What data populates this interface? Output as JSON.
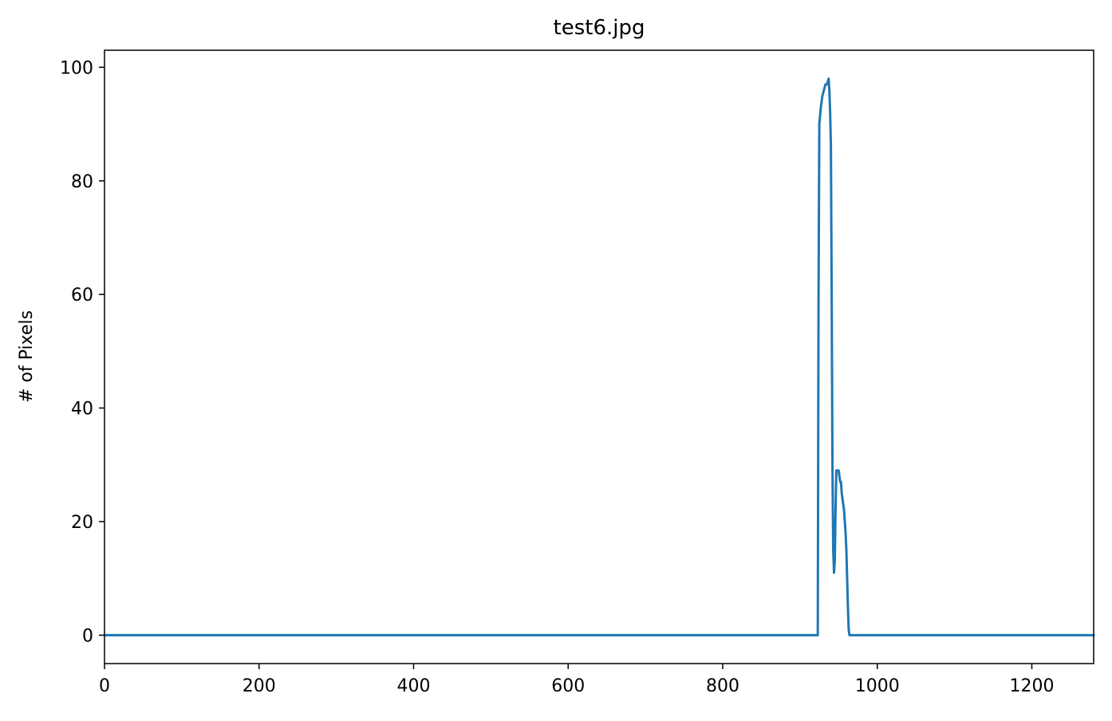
{
  "chart_data": {
    "type": "line",
    "title": "test6.jpg",
    "xlabel": "",
    "ylabel": "# of Pixels",
    "xlim": [
      0,
      1280
    ],
    "ylim": [
      -5,
      103
    ],
    "x_ticks": [
      0,
      200,
      400,
      600,
      800,
      1000,
      1200
    ],
    "y_ticks": [
      0,
      20,
      40,
      60,
      80,
      100
    ],
    "grid": false,
    "line_color": "#1f77b4",
    "series": [
      {
        "points": [
          [
            0,
            0
          ],
          [
            920,
            0
          ],
          [
            923,
            0
          ],
          [
            924,
            60
          ],
          [
            925,
            90
          ],
          [
            927,
            93
          ],
          [
            929,
            95
          ],
          [
            931,
            96
          ],
          [
            933,
            97
          ],
          [
            935,
            97
          ],
          [
            937,
            98
          ],
          [
            938,
            96
          ],
          [
            939,
            92
          ],
          [
            940,
            86
          ],
          [
            941,
            60
          ],
          [
            942,
            30
          ],
          [
            943,
            15
          ],
          [
            944,
            11
          ],
          [
            945,
            13
          ],
          [
            946,
            22
          ],
          [
            947,
            29
          ],
          [
            948,
            29
          ],
          [
            949,
            29
          ],
          [
            950,
            29
          ],
          [
            951,
            28
          ],
          [
            952,
            27
          ],
          [
            953,
            27
          ],
          [
            954,
            25
          ],
          [
            955,
            24
          ],
          [
            956,
            23
          ],
          [
            957,
            22
          ],
          [
            958,
            20
          ],
          [
            959,
            18
          ],
          [
            960,
            15
          ],
          [
            961,
            10
          ],
          [
            962,
            5
          ],
          [
            963,
            1
          ],
          [
            964,
            0
          ],
          [
            1280,
            0
          ]
        ]
      }
    ]
  }
}
